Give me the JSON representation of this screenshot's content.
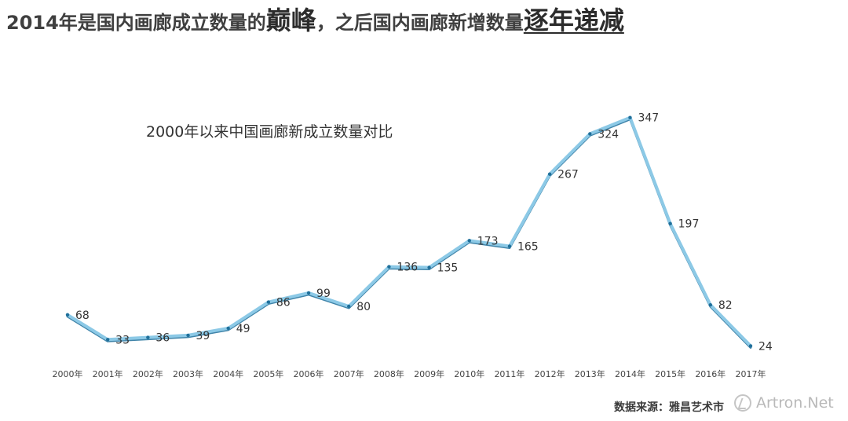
{
  "headline": {
    "part1": "2014年是国内画廊成立数量的",
    "emphasis1": "巅峰",
    "part2": "，之后国内画廊新增数量",
    "emphasis2": "逐年递减"
  },
  "footer": {
    "source": "数据来源：雅昌艺术市",
    "watermark": "Artron.Net"
  },
  "colors": {
    "line_light": "#8cc9e6",
    "line_dark": "#1f6f9a",
    "drop_line": "#1b4f6e",
    "text": "#333333"
  },
  "chart_data": {
    "type": "line",
    "title": "2000年以来中国画廊新成立数量对比",
    "categories": [
      "2000年",
      "2001年",
      "2002年",
      "2003年",
      "2004年",
      "2005年",
      "2006年",
      "2007年",
      "2008年",
      "2009年",
      "2010年",
      "2011年",
      "2012年",
      "2013年",
      "2014年",
      "2015年",
      "2016年",
      "2017年"
    ],
    "values": [
      68,
      33,
      36,
      39,
      49,
      86,
      99,
      80,
      136,
      135,
      173,
      165,
      267,
      324,
      347,
      197,
      82,
      24
    ],
    "data_labels": [
      "68",
      "33",
      "36",
      "39",
      "49",
      "86",
      "99",
      "80",
      "136",
      "135",
      "173",
      "165",
      "267",
      "324",
      "347",
      "197",
      "82",
      "24"
    ],
    "xlabel": "",
    "ylabel": "",
    "ylim": [
      0,
      360
    ],
    "grid": false,
    "legend": "none"
  }
}
